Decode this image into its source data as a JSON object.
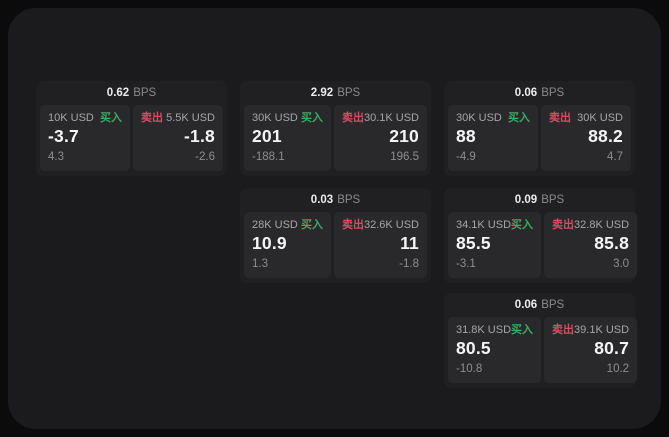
{
  "labels": {
    "bps_unit": "BPS",
    "buy": "买入",
    "sell": "卖出"
  },
  "colors": {
    "buy_green": "#3caa64",
    "sell_red": "#d04f63",
    "outer_background": "#0b0b0c",
    "window_background": "#1b1b1d",
    "card_background": "#202022",
    "panel_background": "#29292b"
  },
  "cards": [
    {
      "bps_value": "0.62",
      "buy": {
        "size": "10K USD",
        "price": "-3.7",
        "delta": "4.3"
      },
      "sell": {
        "size": "5.5K USD",
        "price": "-1.8",
        "delta": "-2.6"
      }
    },
    {
      "bps_value": "2.92",
      "buy": {
        "size": "30K USD",
        "price": "201",
        "delta": "-188.1"
      },
      "sell": {
        "size": "30.1K USD",
        "price": "210",
        "delta": "196.5"
      }
    },
    {
      "bps_value": "0.06",
      "buy": {
        "size": "30K USD",
        "price": "88",
        "delta": "-4.9"
      },
      "sell": {
        "size": "30K USD",
        "price": "88.2",
        "delta": "4.7"
      }
    },
    {
      "bps_value": "0.03",
      "buy": {
        "size": "28K USD",
        "price": "10.9",
        "delta": "1.3"
      },
      "sell": {
        "size": "32.6K USD",
        "price": "11",
        "delta": "-1.8"
      }
    },
    {
      "bps_value": "0.09",
      "buy": {
        "size": "34.1K USD",
        "price": "85.5",
        "delta": "-3.1"
      },
      "sell": {
        "size": "32.8K USD",
        "price": "85.8",
        "delta": "3.0"
      }
    },
    {
      "bps_value": "0.06",
      "buy": {
        "size": "31.8K USD",
        "price": "80.5",
        "delta": "-10.8"
      },
      "sell": {
        "size": "39.1K USD",
        "price": "80.7",
        "delta": "10.2"
      }
    }
  ]
}
